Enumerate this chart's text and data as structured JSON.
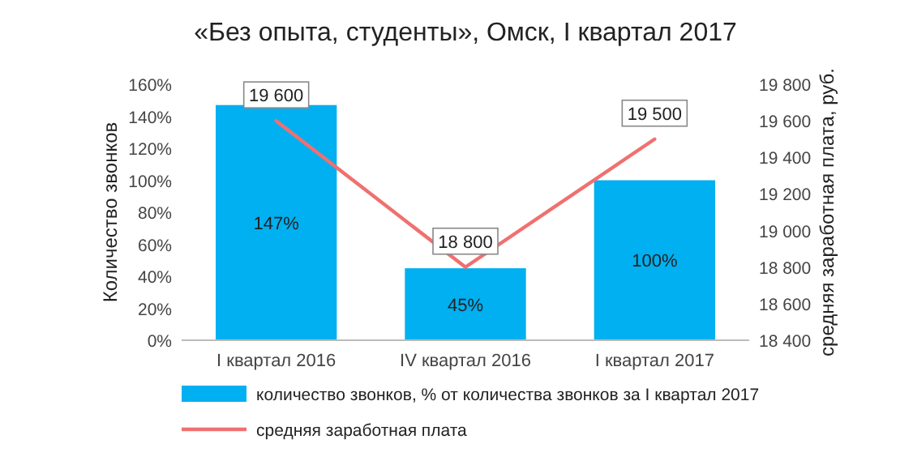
{
  "chart_data": {
    "type": "bar",
    "title": "«Без опыта, студенты», Омск, I квартал 2017",
    "ylabel": "Количество звонков",
    "y2label": "средняя заработная плата, руб.",
    "categories": [
      "I квартал 2016",
      "IV квартал 2016",
      "I квартал 2017"
    ],
    "series": [
      {
        "name": "количество звонков, % от количества звонков за I квартал 2017",
        "color": "#00b0f0",
        "values": [
          147,
          45,
          100
        ],
        "value_labels": [
          "147%",
          "45%",
          "100%"
        ]
      },
      {
        "name": "средняя заработная плата",
        "type": "line",
        "axis": "y2",
        "color": "#f07070",
        "values": [
          19600,
          18800,
          19500
        ],
        "value_labels": [
          "19 600",
          "18 800",
          "19 500"
        ]
      }
    ],
    "ylim": [
      0,
      160
    ],
    "yticks": [
      {
        "value": 0,
        "label": "0%"
      },
      {
        "value": 20,
        "label": "20%"
      },
      {
        "value": 40,
        "label": "40%"
      },
      {
        "value": 60,
        "label": "60%"
      },
      {
        "value": 80,
        "label": "80%"
      },
      {
        "value": 100,
        "label": "100%"
      },
      {
        "value": 120,
        "label": "120%"
      },
      {
        "value": 140,
        "label": "140%"
      },
      {
        "value": 160,
        "label": "160%"
      }
    ],
    "y2lim": [
      18400,
      19800
    ],
    "y2ticks": [
      {
        "value": 18400,
        "label": "18 400"
      },
      {
        "value": 18600,
        "label": "18 600"
      },
      {
        "value": 18800,
        "label": "18 800"
      },
      {
        "value": 19000,
        "label": "19 000"
      },
      {
        "value": 19200,
        "label": "19 200"
      },
      {
        "value": 19400,
        "label": "19 400"
      },
      {
        "value": 19600,
        "label": "19 600"
      },
      {
        "value": 19800,
        "label": "19 800"
      }
    ],
    "legend": "bottom",
    "line_style": "solid"
  }
}
